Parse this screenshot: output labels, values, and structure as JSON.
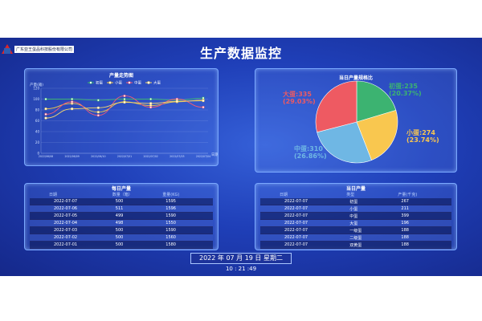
{
  "company": "广东亚王蛋品科技股份有限公司",
  "title": "生产数据监控",
  "trend": {
    "title": "产量走势图",
    "y_unit": "产量(箱)",
    "x_unit": "日期",
    "legend": [
      "初蛋",
      "小蛋",
      "中蛋",
      "大蛋"
    ],
    "colors": {
      "初蛋": "#3cb371",
      "小蛋": "#f2c94c",
      "中蛋": "#ee5a78",
      "大蛋": "#f5d76e"
    }
  },
  "chart_data": {
    "type": "line",
    "title": "产量走势图",
    "xlabel": "日期",
    "ylabel": "产量(箱)",
    "ylim": [
      0,
      120
    ],
    "y_ticks": [
      0,
      20,
      40,
      60,
      80,
      100,
      120
    ],
    "x": [
      "2022/06/08",
      "2022/06/09",
      "2022/06/10",
      "2022/07/01",
      "2022/07/02",
      "2022/07/03",
      "2022/07/04"
    ],
    "series": [
      {
        "name": "初蛋",
        "values": [
          100,
          100,
          98,
          100,
          100,
          98,
          102
        ]
      },
      {
        "name": "小蛋",
        "values": [
          82,
          92,
          76,
          95,
          88,
          95,
          98
        ]
      },
      {
        "name": "中蛋",
        "values": [
          72,
          95,
          70,
          106,
          85,
          100,
          85
        ]
      },
      {
        "name": "大蛋",
        "values": [
          65,
          82,
          84,
          94,
          92,
          96,
          97
        ]
      }
    ],
    "grid": true,
    "legend_position": "top"
  },
  "pie": {
    "title": "当日产量规格比",
    "slices": [
      {
        "name": "初蛋",
        "value": 235,
        "pct": "20.37%",
        "color": "#3cb371"
      },
      {
        "name": "小蛋",
        "value": 274,
        "pct": "23.74%",
        "color": "#f9c74f"
      },
      {
        "name": "中蛋",
        "value": 310,
        "pct": "26.86%",
        "color": "#6fb7e4"
      },
      {
        "name": "大蛋",
        "value": 335,
        "pct": "29.03%",
        "color": "#ee5a62"
      }
    ]
  },
  "daily": {
    "title": "每日产量",
    "headers": [
      "日期",
      "数量（箱）",
      "重量(KG)"
    ],
    "rows": [
      [
        "2022-07-07",
        "500",
        "1595"
      ],
      [
        "2022-07-06",
        "511",
        "1596"
      ],
      [
        "2022-07-05",
        "499",
        "1590"
      ],
      [
        "2022-07-04",
        "498",
        "1550"
      ],
      [
        "2022-07-03",
        "500",
        "1590"
      ],
      [
        "2022-07-02",
        "500",
        "1560"
      ],
      [
        "2022-07-01",
        "500",
        "1580"
      ]
    ]
  },
  "today": {
    "title": "当日产量",
    "headers": [
      "日期",
      "类型",
      "产量(千克)"
    ],
    "rows": [
      [
        "2022-07-07",
        "初蛋",
        "267"
      ],
      [
        "2022-07-07",
        "小蛋",
        "211"
      ],
      [
        "2022-07-07",
        "中蛋",
        "399"
      ],
      [
        "2022-07-07",
        "大蛋",
        "196"
      ],
      [
        "2022-07-07",
        "一级蛋",
        "188"
      ],
      [
        "2022-07-07",
        "二级蛋",
        "188"
      ],
      [
        "2022-07-07",
        "双黄蛋",
        "188"
      ]
    ]
  },
  "datetime": "2022 年 07 月 19 日 星期二",
  "clock": "10 : 21 :49"
}
